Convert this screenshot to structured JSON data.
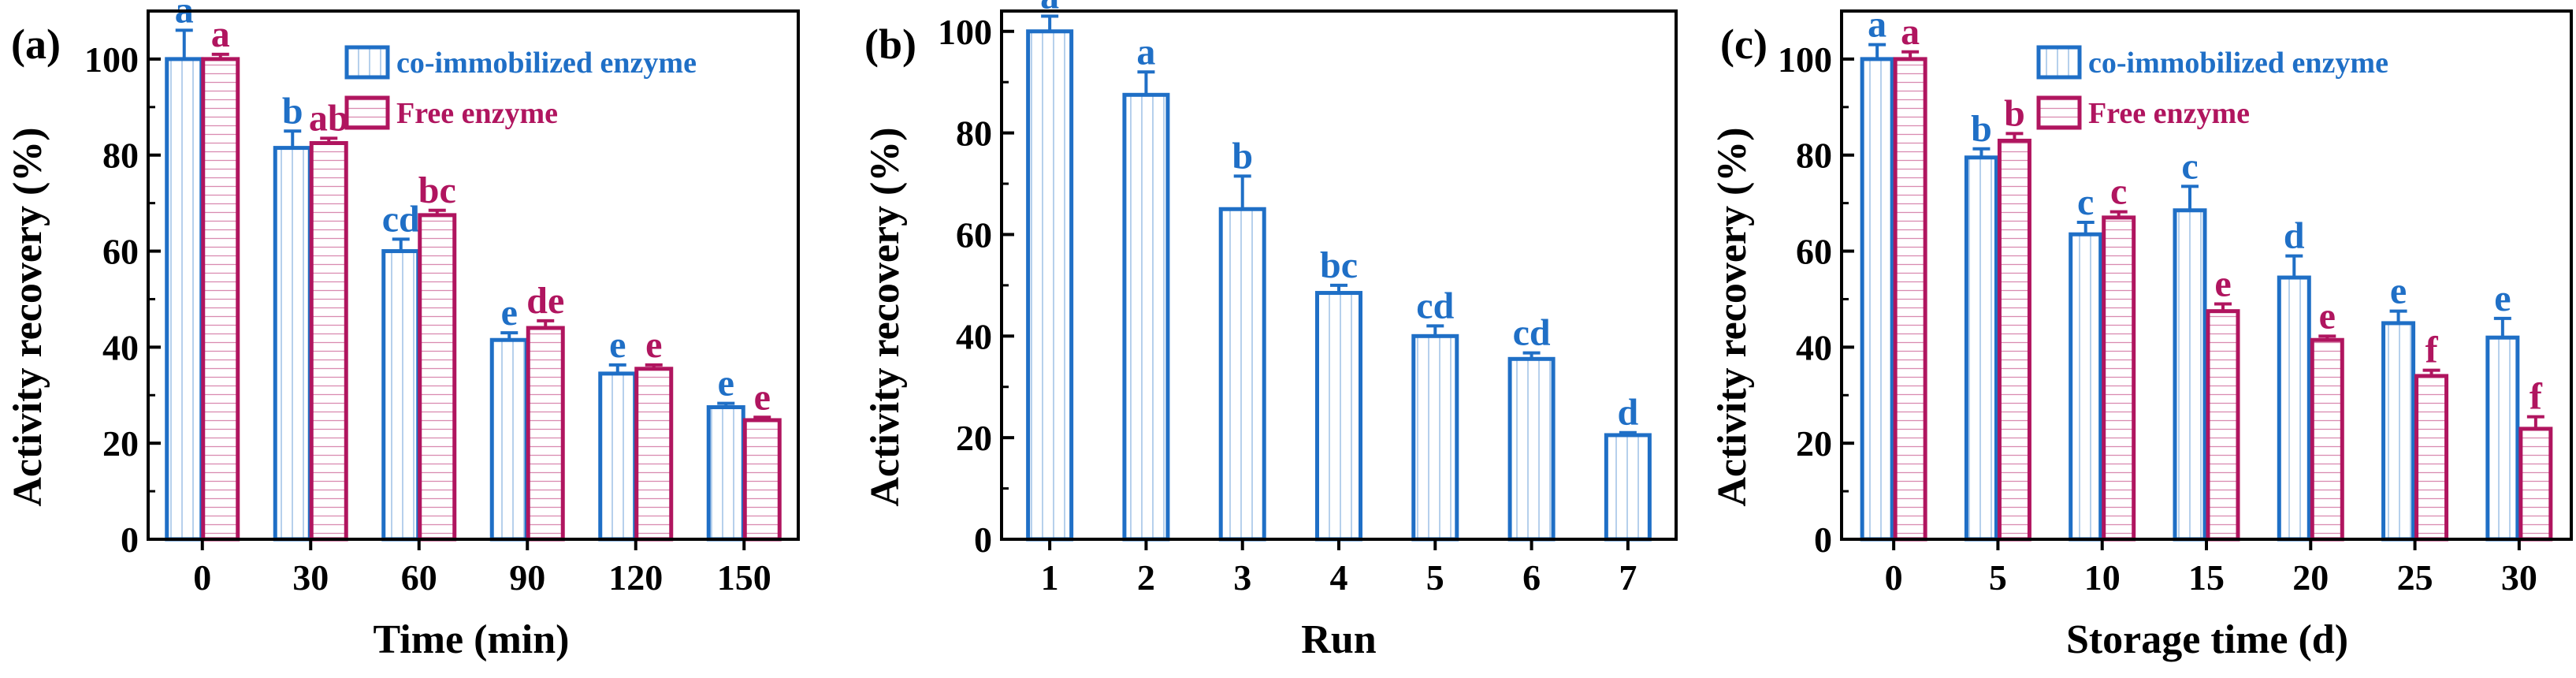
{
  "colors": {
    "immobilized": "#1f6fc6",
    "free": "#b0155f",
    "axis": "#000000"
  },
  "chart_data": [
    {
      "type": "bar",
      "panel_label": "(a)",
      "xlabel": "Time (min)",
      "ylabel": "Activity recovery (%)",
      "ylim": [
        0,
        110
      ],
      "yticks": [
        0,
        20,
        40,
        60,
        80,
        100
      ],
      "categories": [
        "0",
        "30",
        "60",
        "90",
        "120",
        "150"
      ],
      "legend": [
        "co-immobilized enzyme",
        "Free enzyme"
      ],
      "legend_position": "top-right",
      "series": [
        {
          "name": "co-immobilized enzyme",
          "color": "#1f6fc6",
          "values": [
            100,
            81.5,
            60,
            41.5,
            34.5,
            27.5
          ],
          "errors": [
            6,
            3.5,
            2.5,
            1.5,
            1.8,
            0.8
          ],
          "letters": [
            "a",
            "b",
            "cd",
            "e",
            "e",
            "e"
          ]
        },
        {
          "name": "Free enzyme",
          "color": "#b0155f",
          "values": [
            100,
            82.5,
            67.5,
            44,
            35.5,
            24.8
          ],
          "errors": [
            1,
            1,
            1,
            1.5,
            0.8,
            0.6
          ],
          "letters": [
            "a",
            "ab",
            "bc",
            "de",
            "e",
            "e"
          ]
        }
      ]
    },
    {
      "type": "bar",
      "panel_label": "(b)",
      "xlabel": "Run",
      "ylabel": "Activity recovery (%)",
      "ylim": [
        0,
        104
      ],
      "yticks": [
        0,
        20,
        40,
        60,
        80,
        100
      ],
      "categories": [
        "1",
        "2",
        "3",
        "4",
        "5",
        "6",
        "7"
      ],
      "series": [
        {
          "color": "#1f6fc6",
          "values": [
            100,
            87.5,
            65,
            48.5,
            40,
            35.5,
            20.5
          ],
          "errors": [
            3,
            4.5,
            6.5,
            1.5,
            2,
            1.2,
            0.5
          ],
          "letters": [
            "a",
            "a",
            "b",
            "bc",
            "cd",
            "cd",
            "d"
          ]
        }
      ]
    },
    {
      "type": "bar",
      "panel_label": "(c)",
      "xlabel": "Storage time (d)",
      "ylabel": "Activity recovery (%)",
      "ylim": [
        0,
        110
      ],
      "yticks": [
        0,
        20,
        40,
        60,
        80,
        100
      ],
      "categories": [
        "0",
        "5",
        "10",
        "15",
        "20",
        "25",
        "30"
      ],
      "legend": [
        "co-immobilized enzyme",
        "Free enzyme"
      ],
      "legend_position": "top-right",
      "series": [
        {
          "name": "co-immobilized enzyme",
          "color": "#1f6fc6",
          "values": [
            100,
            79.5,
            63.5,
            68.5,
            54.5,
            45,
            42
          ],
          "errors": [
            3,
            1.8,
            2.5,
            5,
            4.5,
            2.5,
            4
          ],
          "letters": [
            "a",
            "b",
            "c",
            "c",
            "d",
            "e",
            "e"
          ]
        },
        {
          "name": "Free enzyme",
          "color": "#b0155f",
          "values": [
            100,
            83,
            67,
            47.5,
            41.5,
            34,
            23
          ],
          "errors": [
            1.5,
            1.5,
            1.2,
            1.5,
            0.8,
            1.2,
            2.5
          ],
          "letters": [
            "a",
            "b",
            "c",
            "e",
            "e",
            "f",
            "f"
          ]
        }
      ]
    }
  ]
}
